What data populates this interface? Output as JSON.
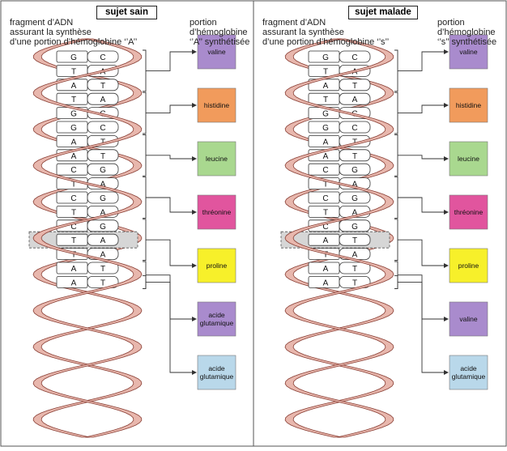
{
  "panels": [
    {
      "id": "sain",
      "title": "sujet sain",
      "left_header": "fragment d’ADN\nassurant la synthèse\nd’une portion d’hémoglobine ‘’A’’",
      "right_header": "portion\nd’hémoglobine\n‘’A’’ synthétisée",
      "pairs": [
        [
          "G",
          "C"
        ],
        [
          "T",
          "A"
        ],
        [
          "A",
          "T"
        ],
        [
          "T",
          "A"
        ],
        [
          "G",
          "C"
        ],
        [
          "G",
          "C"
        ],
        [
          "A",
          "T"
        ],
        [
          "A",
          "T"
        ],
        [
          "C",
          "G"
        ],
        [
          "T",
          "A"
        ],
        [
          "C",
          "G"
        ],
        [
          "T",
          "A"
        ],
        [
          "C",
          "G"
        ],
        [
          "T",
          "A"
        ],
        [
          "T",
          "A"
        ],
        [
          "A",
          "T"
        ],
        [
          "A",
          "T"
        ]
      ],
      "amino_acids": [
        {
          "name": "valine",
          "color": "#a98bcd"
        },
        {
          "name": "histidine",
          "color": "#f19b5c"
        },
        {
          "name": "leucine",
          "color": "#a9d88f"
        },
        {
          "name": "thréonine",
          "color": "#e1559e"
        },
        {
          "name": "proline",
          "color": "#f7f02a"
        },
        {
          "name": "acide glutamique",
          "color": "#a98bcd"
        },
        {
          "name": "acide glutamique",
          "color": "#b9d8ea"
        }
      ]
    },
    {
      "id": "malade",
      "title": "sujet malade",
      "left_header": "fragment d’ADN\nassurant la synthèse\nd’une portion d’hémoglobine ‘’s’’",
      "right_header": "portion\nd’hémoglobine\n‘’s’’ synthétisée",
      "pairs": [
        [
          "G",
          "C"
        ],
        [
          "T",
          "A"
        ],
        [
          "A",
          "T"
        ],
        [
          "T",
          "A"
        ],
        [
          "G",
          "C"
        ],
        [
          "G",
          "C"
        ],
        [
          "A",
          "T"
        ],
        [
          "A",
          "T"
        ],
        [
          "C",
          "G"
        ],
        [
          "T",
          "A"
        ],
        [
          "C",
          "G"
        ],
        [
          "T",
          "A"
        ],
        [
          "C",
          "G"
        ],
        [
          "A",
          "T"
        ],
        [
          "T",
          "A"
        ],
        [
          "A",
          "T"
        ],
        [
          "A",
          "T"
        ]
      ],
      "amino_acids": [
        {
          "name": "valine",
          "color": "#a98bcd"
        },
        {
          "name": "histidine",
          "color": "#f19b5c"
        },
        {
          "name": "leucine",
          "color": "#a9d88f"
        },
        {
          "name": "thréonine",
          "color": "#e1559e"
        },
        {
          "name": "proline",
          "color": "#f7f02a"
        },
        {
          "name": "valine",
          "color": "#a98bcd"
        },
        {
          "name": "acide glutamique",
          "color": "#b9d8ea"
        }
      ]
    }
  ],
  "colors": {
    "strand_fill": "#e8b7ad",
    "strand_stroke": "#8a3f35",
    "connector": "#333333",
    "highlight": "#d6d6d6"
  }
}
